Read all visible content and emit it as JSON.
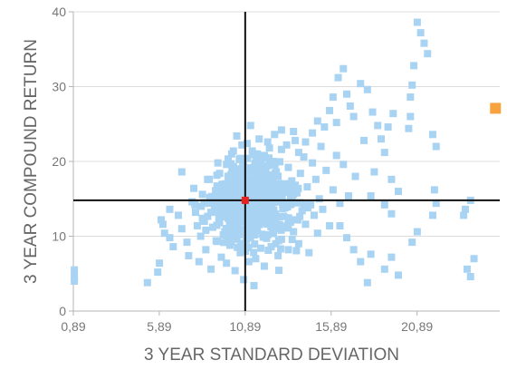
{
  "chart_data": {
    "type": "scatter",
    "xlabel": "3 YEAR STANDARD DEVIATION",
    "ylabel": "3 YEAR COMPOUND RETURN",
    "xlim": [
      0.89,
      25.7
    ],
    "ylim": [
      0,
      40
    ],
    "x_ticks": [
      {
        "value": 0.89,
        "label": "0,89"
      },
      {
        "value": 5.89,
        "label": "5,89"
      },
      {
        "value": 10.89,
        "label": "10,89"
      },
      {
        "value": 15.89,
        "label": "15,89"
      },
      {
        "value": 20.89,
        "label": "20,89"
      }
    ],
    "y_ticks": [
      {
        "value": 0,
        "label": "0"
      },
      {
        "value": 10,
        "label": "10"
      },
      {
        "value": 20,
        "label": "20"
      },
      {
        "value": 30,
        "label": "30"
      },
      {
        "value": 40,
        "label": "40"
      }
    ],
    "grid": "horizontal",
    "reference_lines": {
      "x": 10.89,
      "y": 14.8
    },
    "colors": {
      "points": "#a9d3f2",
      "highlight": "#e8231f",
      "outlier": "#f7a23e",
      "reference": "#111111",
      "grid": "#dcdcdc"
    },
    "series": [
      {
        "role": "points",
        "points": [
          [
            0.95,
            5.5
          ],
          [
            0.95,
            4.6
          ],
          [
            0.95,
            4.0
          ],
          [
            5.2,
            3.8
          ],
          [
            5.8,
            5.2
          ],
          [
            5.9,
            6.4
          ],
          [
            6.0,
            12.2
          ],
          [
            6.1,
            11.6
          ],
          [
            6.2,
            10.4
          ],
          [
            6.5,
            9.8
          ],
          [
            6.7,
            8.6
          ],
          [
            6.5,
            13.6
          ],
          [
            7.0,
            12.8
          ],
          [
            7.2,
            11.0
          ],
          [
            7.5,
            9.2
          ],
          [
            7.2,
            18.6
          ],
          [
            7.8,
            14.6
          ],
          [
            7.9,
            16.4
          ],
          [
            7.6,
            7.4
          ],
          [
            8.2,
            6.6
          ],
          [
            8.0,
            13.2
          ],
          [
            8.4,
            15.6
          ],
          [
            8.3,
            10.0
          ],
          [
            8.5,
            12.0
          ],
          [
            8.6,
            8.2
          ],
          [
            8.7,
            14.4
          ],
          [
            8.7,
            17.6
          ],
          [
            8.9,
            5.6
          ],
          [
            9.0,
            11.2
          ],
          [
            9.1,
            13.8
          ],
          [
            9.2,
            16.0
          ],
          [
            9.2,
            9.4
          ],
          [
            9.4,
            18.4
          ],
          [
            9.5,
            7.2
          ],
          [
            9.5,
            12.6
          ],
          [
            9.6,
            15.0
          ],
          [
            9.7,
            10.6
          ],
          [
            9.8,
            19.6
          ],
          [
            9.8,
            6.4
          ],
          [
            9.9,
            13.4
          ],
          [
            10.0,
            17.0
          ],
          [
            10.0,
            8.8
          ],
          [
            10.1,
            11.8
          ],
          [
            10.2,
            21.4
          ],
          [
            10.2,
            14.0
          ],
          [
            10.3,
            5.4
          ],
          [
            10.3,
            16.6
          ],
          [
            10.4,
            9.6
          ],
          [
            10.5,
            12.8
          ],
          [
            10.5,
            19.0
          ],
          [
            10.6,
            7.8
          ],
          [
            10.6,
            15.4
          ],
          [
            10.7,
            22.2
          ],
          [
            10.7,
            10.4
          ],
          [
            10.8,
            13.6
          ],
          [
            10.8,
            4.2
          ],
          [
            10.9,
            17.8
          ],
          [
            10.9,
            8.0
          ],
          [
            11.0,
            11.4
          ],
          [
            11.0,
            20.4
          ],
          [
            11.1,
            6.6
          ],
          [
            11.1,
            14.8
          ],
          [
            11.2,
            24.8
          ],
          [
            11.2,
            9.8
          ],
          [
            11.3,
            12.2
          ],
          [
            11.3,
            18.2
          ],
          [
            11.4,
            3.4
          ],
          [
            11.4,
            16.2
          ],
          [
            11.5,
            7.0
          ],
          [
            11.5,
            13.0
          ],
          [
            11.6,
            21.0
          ],
          [
            11.6,
            10.8
          ],
          [
            11.7,
            15.6
          ],
          [
            11.8,
            8.4
          ],
          [
            11.8,
            19.4
          ],
          [
            11.9,
            12.4
          ],
          [
            12.0,
            6.0
          ],
          [
            12.0,
            17.2
          ],
          [
            12.1,
            14.2
          ],
          [
            12.2,
            10.2
          ],
          [
            12.2,
            22.6
          ],
          [
            12.3,
            16.8
          ],
          [
            12.4,
            8.6
          ],
          [
            12.5,
            13.2
          ],
          [
            12.5,
            20.0
          ],
          [
            12.6,
            11.0
          ],
          [
            12.7,
            18.6
          ],
          [
            12.8,
            15.2
          ],
          [
            12.8,
            7.4
          ],
          [
            12.9,
            12.6
          ],
          [
            13.0,
            21.6
          ],
          [
            13.0,
            9.6
          ],
          [
            13.1,
            16.4
          ],
          [
            13.2,
            13.8
          ],
          [
            13.3,
            11.2
          ],
          [
            13.4,
            19.2
          ],
          [
            13.4,
            8.2
          ],
          [
            13.5,
            14.6
          ],
          [
            13.6,
            17.4
          ],
          [
            13.7,
            10.6
          ],
          [
            13.8,
            22.8
          ],
          [
            13.8,
            12.2
          ],
          [
            13.9,
            15.8
          ],
          [
            14.0,
            9.0
          ],
          [
            14.1,
            18.4
          ],
          [
            14.2,
            13.4
          ],
          [
            14.3,
            20.6
          ],
          [
            14.4,
            11.6
          ],
          [
            14.5,
            16.6
          ],
          [
            14.6,
            7.8
          ],
          [
            14.7,
            14.2
          ],
          [
            14.8,
            19.8
          ],
          [
            14.9,
            12.8
          ],
          [
            15.0,
            17.6
          ],
          [
            15.1,
            10.4
          ],
          [
            15.2,
            15.0
          ],
          [
            15.3,
            22.0
          ],
          [
            15.4,
            13.6
          ],
          [
            15.6,
            18.8
          ],
          [
            15.8,
            11.4
          ],
          [
            16.0,
            16.2
          ],
          [
            16.2,
            20.8
          ],
          [
            16.4,
            14.4
          ],
          [
            16.6,
            19.6
          ],
          [
            16.9,
            15.4
          ],
          [
            17.3,
            18.0
          ],
          [
            8.8,
            17.6
          ],
          [
            9.3,
            19.8
          ],
          [
            9.7,
            17.0
          ],
          [
            10.1,
            21.0
          ],
          [
            10.4,
            23.4
          ],
          [
            10.6,
            20.4
          ],
          [
            11.0,
            22.4
          ],
          [
            11.3,
            21.4
          ],
          [
            11.7,
            23.0
          ],
          [
            12.0,
            20.8
          ],
          [
            12.3,
            21.8
          ],
          [
            12.6,
            23.6
          ],
          [
            13.0,
            24.2
          ],
          [
            13.3,
            22.2
          ],
          [
            13.7,
            24.0
          ],
          [
            14.0,
            21.2
          ],
          [
            14.4,
            22.6
          ],
          [
            14.8,
            23.8
          ],
          [
            15.1,
            25.4
          ],
          [
            15.5,
            24.6
          ],
          [
            15.8,
            26.8
          ],
          [
            16.0,
            28.6
          ],
          [
            16.3,
            31.2
          ],
          [
            16.6,
            32.4
          ],
          [
            16.2,
            25.2
          ],
          [
            16.8,
            29.0
          ],
          [
            17.0,
            27.4
          ],
          [
            17.2,
            26.0
          ],
          [
            17.6,
            30.4
          ],
          [
            18.0,
            29.6
          ],
          [
            18.3,
            26.6
          ],
          [
            18.6,
            24.8
          ],
          [
            18.8,
            23.0
          ],
          [
            19.2,
            24.6
          ],
          [
            19.5,
            26.4
          ],
          [
            17.8,
            22.8
          ],
          [
            19.0,
            21.2
          ],
          [
            18.4,
            18.6
          ],
          [
            19.4,
            17.6
          ],
          [
            19.8,
            16.0
          ],
          [
            20.9,
            38.6
          ],
          [
            21.1,
            37.2
          ],
          [
            21.3,
            35.8
          ],
          [
            21.5,
            34.4
          ],
          [
            20.7,
            32.8
          ],
          [
            20.6,
            30.2
          ],
          [
            20.5,
            28.6
          ],
          [
            20.5,
            26.0
          ],
          [
            20.4,
            24.4
          ],
          [
            21.8,
            23.6
          ],
          [
            22.0,
            22.0
          ],
          [
            21.9,
            16.2
          ],
          [
            22.0,
            14.4
          ],
          [
            21.8,
            12.8
          ],
          [
            20.9,
            10.6
          ],
          [
            18.2,
            15.4
          ],
          [
            19.0,
            14.2
          ],
          [
            19.4,
            13.0
          ],
          [
            20.6,
            9.2
          ],
          [
            16.4,
            11.4
          ],
          [
            16.8,
            9.8
          ],
          [
            17.2,
            8.2
          ],
          [
            17.6,
            6.6
          ],
          [
            18.0,
            3.8
          ],
          [
            18.2,
            7.6
          ],
          [
            19.0,
            5.6
          ],
          [
            19.4,
            7.2
          ],
          [
            19.8,
            4.8
          ],
          [
            23.8,
            5.6
          ],
          [
            24.0,
            4.6
          ],
          [
            24.2,
            7.0
          ],
          [
            23.7,
            13.6
          ],
          [
            24.0,
            14.8
          ],
          [
            23.6,
            12.8
          ],
          [
            10.2,
            13.0
          ],
          [
            10.5,
            14.4
          ],
          [
            10.8,
            13.8
          ],
          [
            11.2,
            14.2
          ],
          [
            11.5,
            15.2
          ],
          [
            11.9,
            14.6
          ],
          [
            10.0,
            15.8
          ],
          [
            10.3,
            11.6
          ],
          [
            10.7,
            12.0
          ],
          [
            11.0,
            16.2
          ],
          [
            11.4,
            11.2
          ],
          [
            11.8,
            16.0
          ],
          [
            9.6,
            14.2
          ],
          [
            9.9,
            12.4
          ],
          [
            12.2,
            14.8
          ],
          [
            12.5,
            12.0
          ],
          [
            12.8,
            16.8
          ],
          [
            13.1,
            14.0
          ],
          [
            9.2,
            14.8
          ],
          [
            9.4,
            11.8
          ],
          [
            8.9,
            13.2
          ],
          [
            8.6,
            10.8
          ],
          [
            8.4,
            12.4
          ],
          [
            8.1,
            11.4
          ]
        ]
      },
      {
        "role": "highlight",
        "points": [
          [
            10.89,
            14.8
          ]
        ]
      },
      {
        "role": "outlier",
        "points": [
          [
            25.45,
            27.1
          ]
        ]
      }
    ]
  }
}
